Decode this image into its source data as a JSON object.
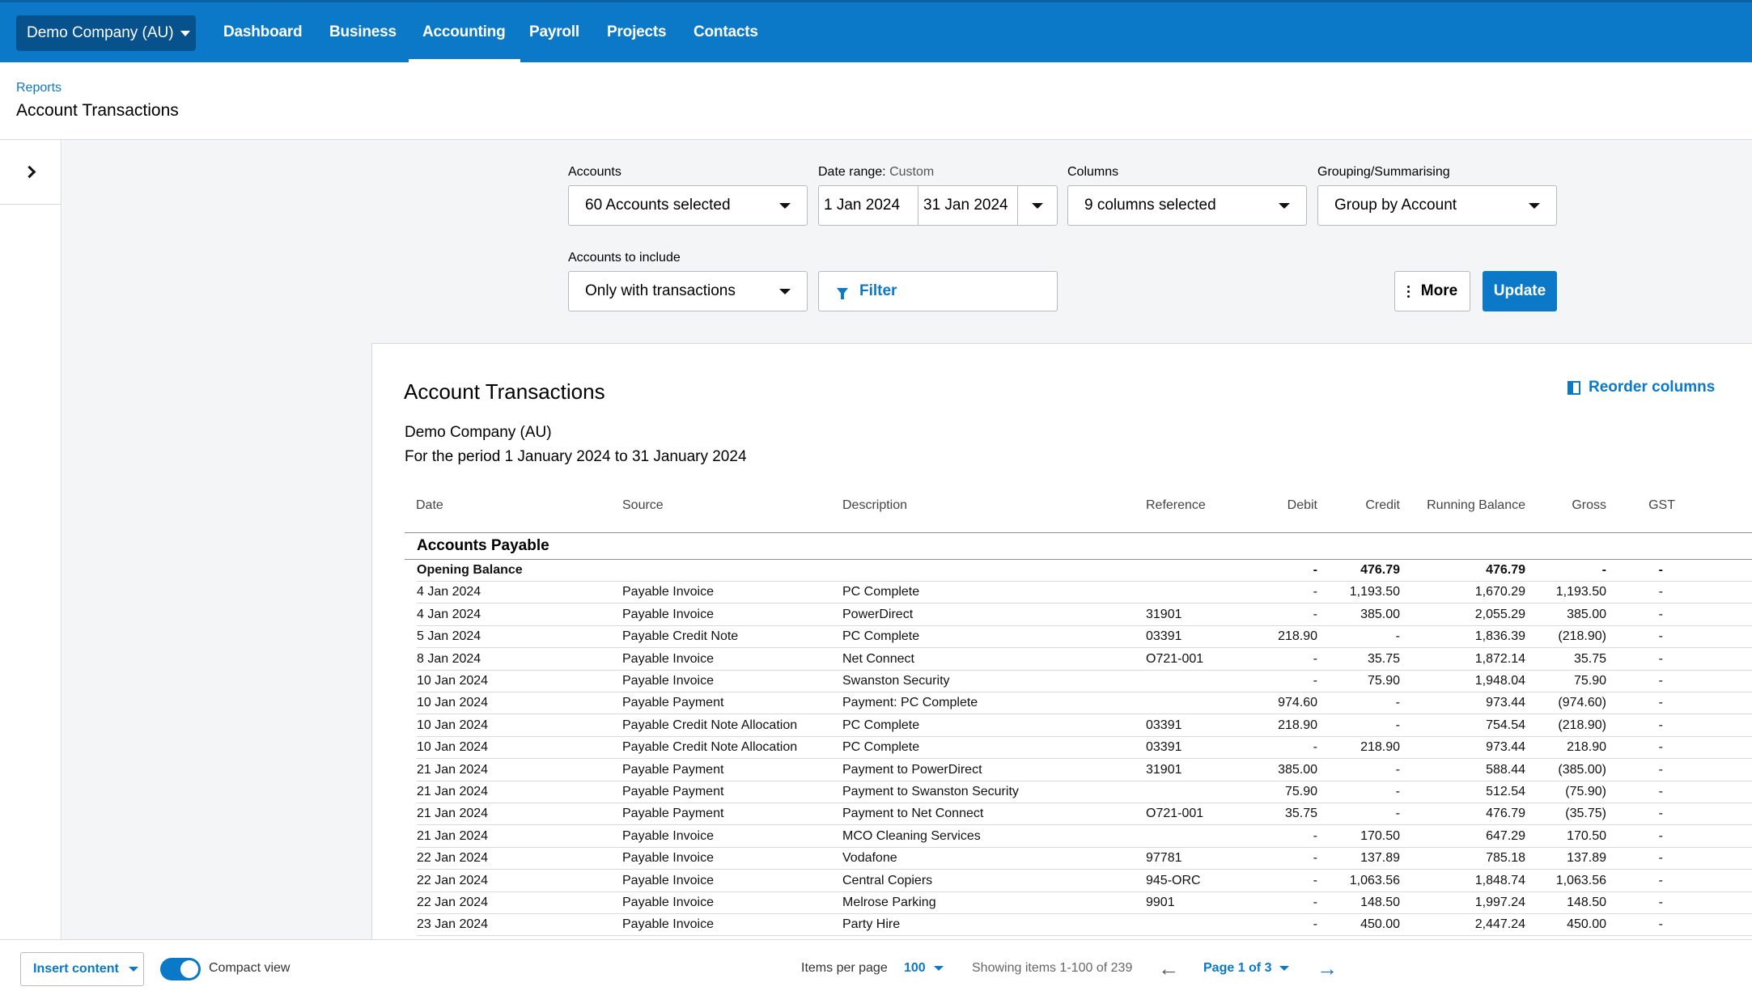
{
  "nav": {
    "org": "Demo Company (AU)",
    "items": [
      "Dashboard",
      "Business",
      "Accounting",
      "Payroll",
      "Projects",
      "Contacts"
    ],
    "active": "Accounting"
  },
  "breadcrumb": "Reports",
  "page_title": "Account Transactions",
  "controls": {
    "accounts_label": "Accounts",
    "accounts_value": "60 Accounts selected",
    "date_range_label": "Date range:",
    "date_range_mode": "Custom",
    "date_from": "1 Jan 2024",
    "date_to": "31 Jan 2024",
    "columns_label": "Columns",
    "columns_value": "9 columns selected",
    "grouping_label": "Grouping/Summarising",
    "grouping_value": "Group by Account",
    "include_label": "Accounts to include",
    "include_value": "Only with transactions",
    "filter_label": "Filter",
    "more_label": "More",
    "update_label": "Update"
  },
  "report": {
    "title": "Account Transactions",
    "reorder_label": "Reorder columns",
    "company": "Demo Company (AU)",
    "period": "For the period 1 January 2024 to 31 January 2024",
    "columns": [
      "Date",
      "Source",
      "Description",
      "Reference",
      "Debit",
      "Credit",
      "Running Balance",
      "Gross",
      "GST"
    ],
    "section": "Accounts Payable",
    "opening": {
      "label": "Opening Balance",
      "debit": "-",
      "credit": "476.79",
      "balance": "476.79",
      "gross": "-",
      "gst": "-"
    },
    "rows": [
      {
        "date": "4 Jan 2024",
        "source": "Payable Invoice",
        "desc": "PC Complete",
        "ref": "",
        "debit": "-",
        "credit": "1,193.50",
        "balance": "1,670.29",
        "gross": "1,193.50",
        "gst": "-"
      },
      {
        "date": "4 Jan 2024",
        "source": "Payable Invoice",
        "desc": "PowerDirect",
        "ref": "31901",
        "debit": "-",
        "credit": "385.00",
        "balance": "2,055.29",
        "gross": "385.00",
        "gst": "-"
      },
      {
        "date": "5 Jan 2024",
        "source": "Payable Credit Note",
        "desc": "PC Complete",
        "ref": "03391",
        "debit": "218.90",
        "credit": "-",
        "balance": "1,836.39",
        "gross": "(218.90)",
        "gst": "-"
      },
      {
        "date": "8 Jan 2024",
        "source": "Payable Invoice",
        "desc": "Net Connect",
        "ref": "O721-001",
        "debit": "-",
        "credit": "35.75",
        "balance": "1,872.14",
        "gross": "35.75",
        "gst": "-"
      },
      {
        "date": "10 Jan 2024",
        "source": "Payable Invoice",
        "desc": "Swanston Security",
        "ref": "",
        "debit": "-",
        "credit": "75.90",
        "balance": "1,948.04",
        "gross": "75.90",
        "gst": "-"
      },
      {
        "date": "10 Jan 2024",
        "source": "Payable Payment",
        "desc": "Payment: PC Complete",
        "ref": "",
        "debit": "974.60",
        "credit": "-",
        "balance": "973.44",
        "gross": "(974.60)",
        "gst": "-"
      },
      {
        "date": "10 Jan 2024",
        "source": "Payable Credit Note Allocation",
        "desc": "PC Complete",
        "ref": "03391",
        "debit": "218.90",
        "credit": "-",
        "balance": "754.54",
        "gross": "(218.90)",
        "gst": "-"
      },
      {
        "date": "10 Jan 2024",
        "source": "Payable Credit Note Allocation",
        "desc": "PC Complete",
        "ref": "03391",
        "debit": "-",
        "credit": "218.90",
        "balance": "973.44",
        "gross": "218.90",
        "gst": "-"
      },
      {
        "date": "21 Jan 2024",
        "source": "Payable Payment",
        "desc": "Payment to PowerDirect",
        "ref": "31901",
        "debit": "385.00",
        "credit": "-",
        "balance": "588.44",
        "gross": "(385.00)",
        "gst": "-"
      },
      {
        "date": "21 Jan 2024",
        "source": "Payable Payment",
        "desc": "Payment to Swanston Security",
        "ref": "",
        "debit": "75.90",
        "credit": "-",
        "balance": "512.54",
        "gross": "(75.90)",
        "gst": "-"
      },
      {
        "date": "21 Jan 2024",
        "source": "Payable Payment",
        "desc": "Payment to Net Connect",
        "ref": "O721-001",
        "debit": "35.75",
        "credit": "-",
        "balance": "476.79",
        "gross": "(35.75)",
        "gst": "-"
      },
      {
        "date": "21 Jan 2024",
        "source": "Payable Invoice",
        "desc": "MCO Cleaning Services",
        "ref": "",
        "debit": "-",
        "credit": "170.50",
        "balance": "647.29",
        "gross": "170.50",
        "gst": "-"
      },
      {
        "date": "22 Jan 2024",
        "source": "Payable Invoice",
        "desc": "Vodafone",
        "ref": "97781",
        "debit": "-",
        "credit": "137.89",
        "balance": "785.18",
        "gross": "137.89",
        "gst": "-"
      },
      {
        "date": "22 Jan 2024",
        "source": "Payable Invoice",
        "desc": "Central Copiers",
        "ref": "945-ORC",
        "debit": "-",
        "credit": "1,063.56",
        "balance": "1,848.74",
        "gross": "1,063.56",
        "gst": "-"
      },
      {
        "date": "22 Jan 2024",
        "source": "Payable Invoice",
        "desc": "Melrose Parking",
        "ref": "9901",
        "debit": "-",
        "credit": "148.50",
        "balance": "1,997.24",
        "gross": "148.50",
        "gst": "-"
      },
      {
        "date": "23 Jan 2024",
        "source": "Payable Invoice",
        "desc": "Party Hire",
        "ref": "",
        "debit": "-",
        "credit": "450.00",
        "balance": "2,447.24",
        "gross": "450.00",
        "gst": "-"
      }
    ]
  },
  "footer": {
    "insert_label": "Insert content",
    "compact_label": "Compact view",
    "per_page_label": "Items per page",
    "per_page_value": "100",
    "showing": "Showing items 1-100 of 239",
    "page_label": "Page 1 of 3"
  }
}
